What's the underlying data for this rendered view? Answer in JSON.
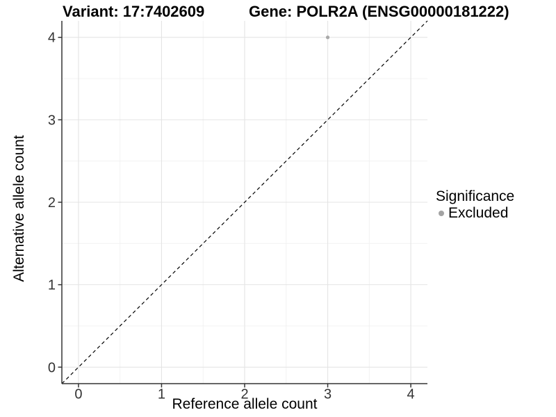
{
  "header": {
    "variant_title": "Variant: 17:7402609",
    "gene_title": "Gene: POLR2A (ENSG00000181222)"
  },
  "chart_data": {
    "type": "scatter",
    "title": "Variant: 17:7402609   Gene: POLR2A (ENSG00000181222)",
    "xlabel": "Reference allele count",
    "ylabel": "Alternative allele count",
    "xlim": [
      -0.2,
      4.2
    ],
    "ylim": [
      -0.2,
      4.2
    ],
    "xticks": [
      0,
      1,
      2,
      3,
      4
    ],
    "yticks": [
      0,
      1,
      2,
      3,
      4
    ],
    "xticks_minor": [
      0.5,
      1.5,
      2.5,
      3.5
    ],
    "yticks_minor": [
      0.5,
      1.5,
      2.5,
      3.5
    ],
    "grid": true,
    "identity_line": {
      "style": "dashed",
      "from": [
        -0.2,
        -0.2
      ],
      "to": [
        4.2,
        4.2
      ],
      "color": "#000000"
    },
    "series": [
      {
        "name": "Excluded",
        "color": "#a9a9a9",
        "point_radius": 2.6,
        "points": [
          [
            3,
            4
          ]
        ]
      }
    ],
    "legend": {
      "title": "Significance",
      "position": "right",
      "entries": [
        {
          "label": "Excluded",
          "color": "#a3a3a3"
        }
      ]
    },
    "colors": {
      "background": "#ffffff",
      "grid_major": "#e4e4e4",
      "grid_minor": "#f0f0f0",
      "axis_line": "#333333",
      "tick_label": "#333333"
    }
  }
}
